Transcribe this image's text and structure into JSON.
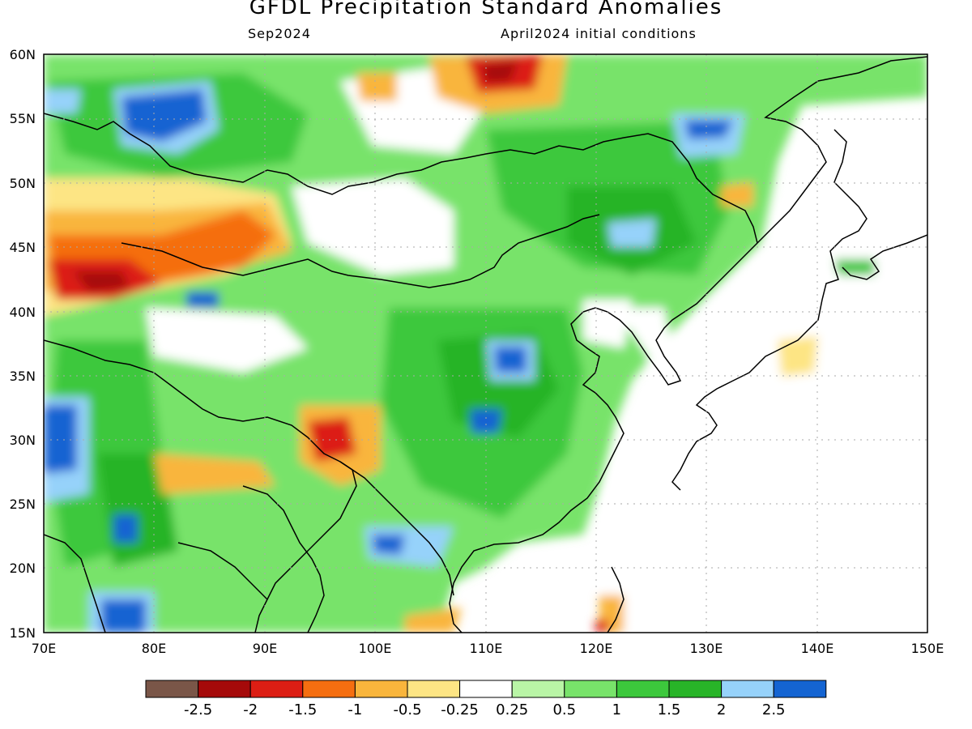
{
  "title": "GFDL Precipitation Standard Anomalies",
  "subtitle_left": "Sep2024",
  "subtitle_right": "April2024 initial conditions",
  "lat_labels": [
    "60N",
    "55N",
    "50N",
    "45N",
    "40N",
    "35N",
    "30N",
    "25N",
    "20N",
    "15N"
  ],
  "lon_labels": [
    "70E",
    "80E",
    "90E",
    "100E",
    "110E",
    "120E",
    "130E",
    "140E",
    "150E"
  ],
  "extent": {
    "lon": [
      70,
      150
    ],
    "lat": [
      15,
      60
    ]
  },
  "colorbar": {
    "labels": [
      "-2.5",
      "-2",
      "-1.5",
      "-1",
      "-0.5",
      "-0.25",
      "0.25",
      "0.5",
      "1",
      "1.5",
      "2",
      "2.5"
    ],
    "colors": [
      "#7a5648",
      "#a50a0a",
      "#dc1e14",
      "#f56e10",
      "#f9b53c",
      "#fde584",
      "#ffffff",
      "#b9f5a6",
      "#78e36a",
      "#3cc83c",
      "#28b428",
      "#96d2fa",
      "#1464d2"
    ]
  },
  "icons": {
    "coastline": "coastline-lines",
    "borders": "country-border-lines"
  }
}
